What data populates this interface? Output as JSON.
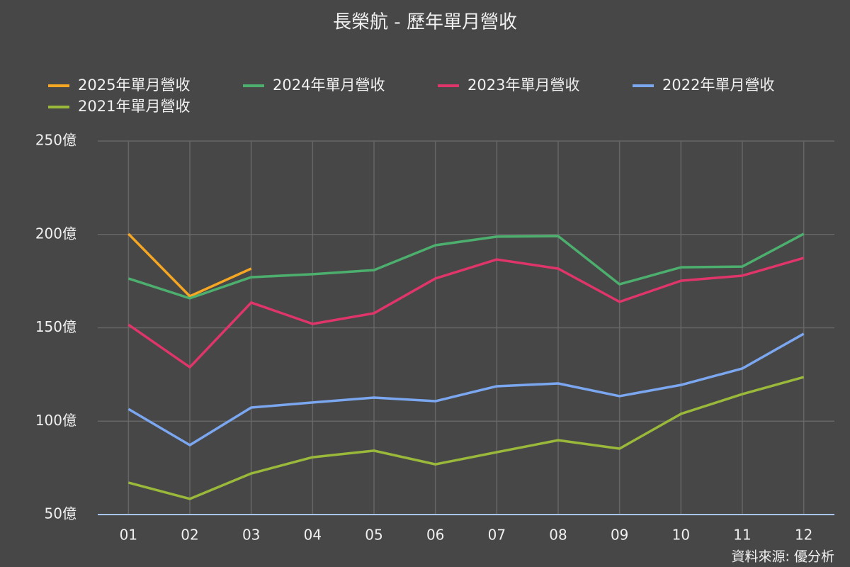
{
  "chart_data": {
    "type": "line",
    "title": "長榮航 - 歷年單月營收",
    "source": "資料來源: 優分析",
    "categories": [
      "01",
      "02",
      "03",
      "04",
      "05",
      "06",
      "07",
      "08",
      "09",
      "10",
      "11",
      "12"
    ],
    "series": [
      {
        "name": "2025年單月營收",
        "color": "#f5a623",
        "values": [
          200.3,
          166.9,
          181.7,
          null,
          null,
          null,
          null,
          null,
          null,
          null,
          null,
          null
        ]
      },
      {
        "name": "2024年單月營收",
        "color": "#4caf6e",
        "values": [
          176.4,
          165.8,
          177.1,
          178.7,
          180.9,
          194.2,
          198.8,
          199.1,
          173.3,
          182.4,
          182.8,
          200.3
        ]
      },
      {
        "name": "2023年單月營收",
        "color": "#e0356a",
        "values": [
          151.7,
          128.9,
          163.5,
          152.1,
          157.8,
          176.4,
          186.6,
          181.7,
          163.9,
          175.2,
          177.9,
          187.4
        ]
      },
      {
        "name": "2022年單月營收",
        "color": "#7ba7f0",
        "values": [
          106.5,
          87.2,
          107.3,
          110.0,
          112.6,
          110.7,
          118.7,
          120.2,
          113.4,
          119.4,
          128.2,
          146.8
        ]
      },
      {
        "name": "2021年單月營收",
        "color": "#9ab83a",
        "values": [
          67.1,
          58.4,
          72.0,
          80.7,
          84.2,
          76.9,
          83.4,
          89.8,
          85.3,
          103.9,
          114.5,
          123.6
        ]
      }
    ],
    "ylim": [
      50,
      250
    ],
    "yticks": [
      {
        "value": 50,
        "label": "50億"
      },
      {
        "value": 100,
        "label": "100億"
      },
      {
        "value": 150,
        "label": "150億"
      },
      {
        "value": 200,
        "label": "200億"
      },
      {
        "value": 250,
        "label": "250億"
      }
    ],
    "grid": true
  }
}
